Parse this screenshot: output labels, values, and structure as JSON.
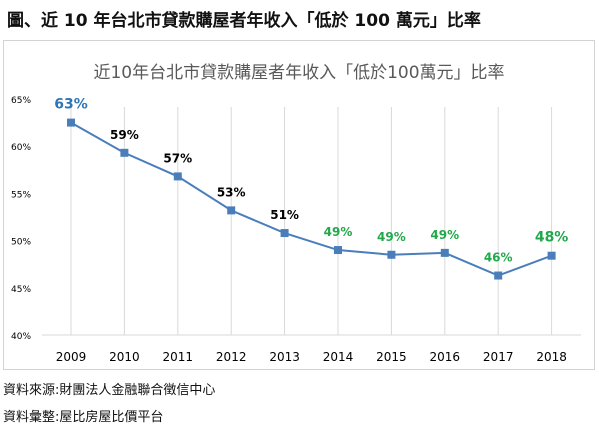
{
  "figure_title": "圖、近 10 年台北市貸款購屋者年收入「低於 100 萬元」比率",
  "sources": [
    "資料來源:財團法人金融聯合徵信中心",
    "資料彙整:屋比房屋比價平台"
  ],
  "chart_data": {
    "type": "line",
    "title": "近10年台北市貸款購屋者年收入「低於100萬元」比率",
    "xlabel": "",
    "ylabel": "",
    "categories": [
      "2009",
      "2010",
      "2011",
      "2012",
      "2013",
      "2014",
      "2015",
      "2016",
      "2017",
      "2018"
    ],
    "series": [
      {
        "values": [
          62.5,
          59.3,
          56.8,
          53.2,
          50.8,
          49.0,
          48.5,
          48.7,
          46.3,
          48.4
        ],
        "labels": [
          "63%",
          "59%",
          "57%",
          "53%",
          "51%",
          "49%",
          "49%",
          "49%",
          "46%",
          "48%"
        ],
        "label_colors": [
          "#2e75b6",
          "#000000",
          "#000000",
          "#000000",
          "#000000",
          "#22a84b",
          "#22a84b",
          "#22a84b",
          "#22a84b",
          "#22a84b"
        ]
      }
    ],
    "ylim": [
      40,
      65
    ],
    "yticks": [
      40,
      45,
      50,
      55,
      60,
      65
    ],
    "ytick_labels": [
      "40%",
      "45%",
      "50%",
      "55%",
      "60%",
      "65%"
    ],
    "grid": "vertical",
    "legend": "none",
    "colors": {
      "line": "#4a7ebb",
      "marker": "#4a7ebb",
      "grid": "#d9d9d9",
      "title": "#595959",
      "tick": "#000000"
    }
  }
}
